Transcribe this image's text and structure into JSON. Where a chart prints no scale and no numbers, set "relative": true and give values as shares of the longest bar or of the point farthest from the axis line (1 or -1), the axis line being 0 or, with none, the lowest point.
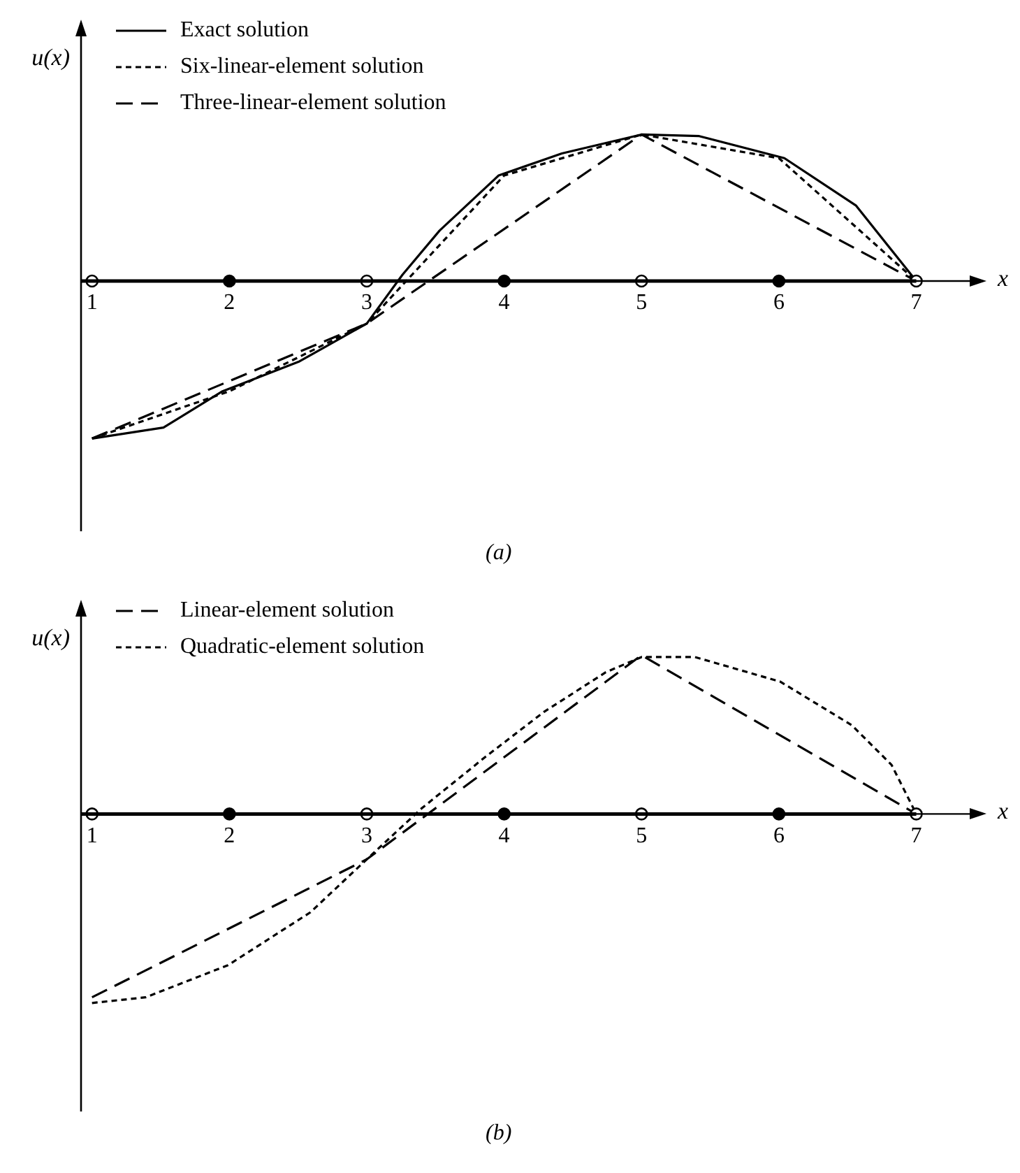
{
  "chart_data": [
    {
      "type": "line",
      "relative": true,
      "ylabel": "u(x)",
      "xlabel": "x",
      "xlim": [
        0.92,
        7.45
      ],
      "xticks": [
        1,
        2,
        3,
        4,
        5,
        6,
        7
      ],
      "legend": "top left",
      "annotations": [
        "(a)"
      ],
      "series": [
        {
          "name": "Exact solution",
          "color": "#000000",
          "line_style": "solid",
          "marker": "none",
          "x": [
            1,
            1.52,
            1.95,
            2.51,
            3,
            3.26,
            3.53,
            3.96,
            4.42,
            5,
            5.42,
            6.04,
            6.56,
            7
          ],
          "values": [
            -1,
            -0.93,
            -0.7,
            -0.51,
            -0.27,
            0.04,
            0.32,
            0.67,
            0.81,
            0.93,
            0.92,
            0.78,
            0.48,
            0
          ]
        },
        {
          "name": "Six-linear-element solution",
          "color": "#000000",
          "line_style": "dotted",
          "marker": "none",
          "x": [
            1,
            2,
            3,
            4,
            5,
            6,
            7
          ],
          "values": [
            -1,
            -0.7,
            -0.27,
            0.67,
            0.93,
            0.78,
            0
          ]
        },
        {
          "name": "Three-linear-element solution",
          "color": "#000000",
          "line_style": "dashed",
          "marker": "none",
          "x": [
            1,
            3,
            5,
            7
          ],
          "values": [
            -1,
            -0.27,
            0.93,
            0
          ]
        },
        {
          "type": "scatter",
          "marker": "circle",
          "x": [
            1,
            2,
            3,
            4,
            5,
            6,
            7
          ],
          "values": [
            0,
            0,
            0,
            0,
            0,
            0,
            0
          ],
          "colors": [
            "#ffffff",
            "#000000",
            "#ffffff",
            "#000000",
            "#ffffff",
            "#000000",
            "#ffffff"
          ]
        }
      ]
    },
    {
      "type": "line",
      "relative": true,
      "ylabel": "u(x)",
      "xlabel": "x",
      "xlim": [
        0.92,
        7.45
      ],
      "xticks": [
        1,
        2,
        3,
        4,
        5,
        6,
        7
      ],
      "legend": "top left",
      "annotations": [
        "(b)"
      ],
      "series": [
        {
          "name": "Linear-element solution",
          "color": "#000000",
          "line_style": "dashed",
          "marker": "none",
          "x": [
            1,
            3,
            5,
            7
          ],
          "values": [
            -0.97,
            -0.24,
            0.84,
            0
          ]
        },
        {
          "name": "Quadratic-element solution",
          "color": "#000000",
          "line_style": "dotted",
          "marker": "none",
          "x": [
            1,
            1.39,
            1.99,
            2.59,
            3,
            3.4,
            3.86,
            4.29,
            4.74,
            5,
            5.39,
            6.01,
            6.53,
            6.82,
            7
          ],
          "values": [
            -1,
            -0.97,
            -0.8,
            -0.52,
            -0.24,
            0.03,
            0.3,
            0.54,
            0.75,
            0.83,
            0.83,
            0.7,
            0.47,
            0.26,
            0
          ]
        },
        {
          "type": "scatter",
          "marker": "circle",
          "x": [
            1,
            2,
            3,
            4,
            5,
            6,
            7
          ],
          "values": [
            0,
            0,
            0,
            0,
            0,
            0,
            0
          ],
          "colors": [
            "#ffffff",
            "#000000",
            "#ffffff",
            "#000000",
            "#ffffff",
            "#000000",
            "#ffffff"
          ]
        }
      ]
    }
  ]
}
